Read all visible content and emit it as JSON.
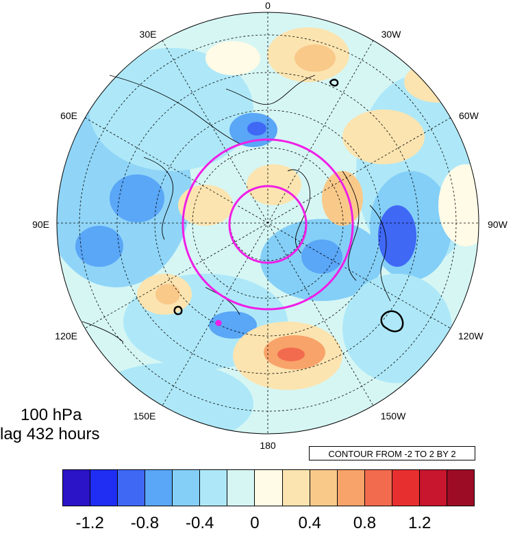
{
  "map": {
    "level_label": "100 hPa",
    "lag_label": "lag 432 hours",
    "contour_note": "CONTOUR FROM -2 TO 2 BY 2",
    "longitude_labels": {
      "top": "0",
      "top_left": "30E",
      "top_right": "30W",
      "upper_left": "60E",
      "upper_right": "60W",
      "left": "90E",
      "right": "90W",
      "lower_left": "120E",
      "lower_right": "120W",
      "bottom_left": "150E",
      "bottom_right": "150W",
      "bottom": "180"
    },
    "colorbar": {
      "colors": [
        "#2b14c8",
        "#1f2ef2",
        "#3f68f5",
        "#5aa6f7",
        "#84cff7",
        "#aee8f8",
        "#d6f6f4",
        "#fffbe6",
        "#fbe4b0",
        "#f9c98a",
        "#f8a36a",
        "#f26b4e",
        "#e82f2f",
        "#c8162e",
        "#9c0d25"
      ],
      "tick_labels": [
        "-1.2",
        "-0.8",
        "-0.4",
        "0",
        "0.4",
        "0.8",
        "1.2"
      ]
    },
    "accent_color": "#f01ee6"
  }
}
